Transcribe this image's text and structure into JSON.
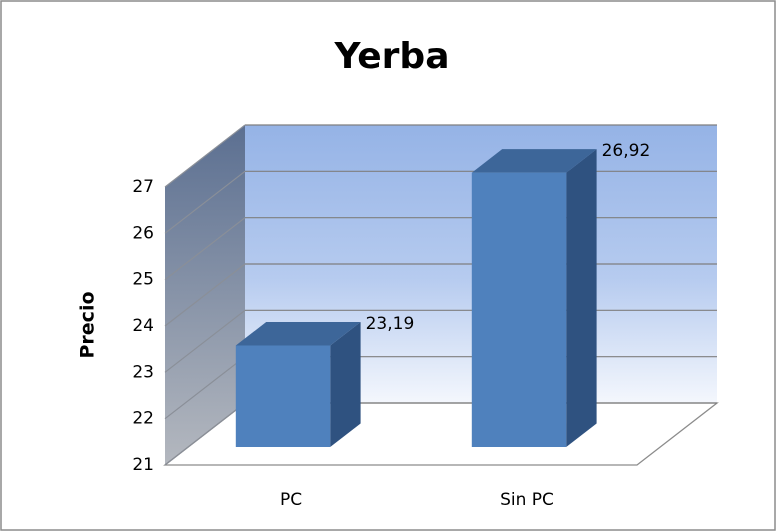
{
  "chart_data": {
    "type": "bar3d",
    "title": "Yerba",
    "ylabel": "Precio",
    "categories": [
      "PC",
      "Sin PC"
    ],
    "values": [
      23.19,
      26.92
    ],
    "value_labels": [
      "23,19",
      "26,92"
    ],
    "color": "#4f81bd",
    "ylim": [
      21,
      27
    ],
    "yticks": [
      21,
      22,
      23,
      24,
      25,
      26,
      27
    ],
    "grid": true
  }
}
